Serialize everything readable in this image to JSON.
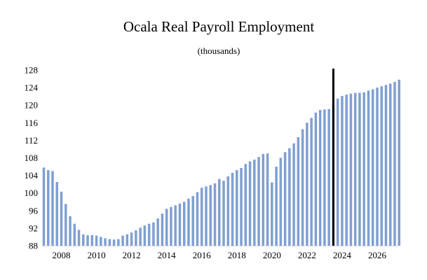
{
  "chart_data": {
    "type": "bar",
    "title": "Ocala Real Payroll Employment",
    "subtitle": "(thousands)",
    "xlabel": "",
    "ylabel": "",
    "x_start": 2007.0,
    "x_step": 0.25,
    "x_ticks": [
      "2008",
      "2010",
      "2012",
      "2014",
      "2016",
      "2018",
      "2020",
      "2022",
      "2024",
      "2026"
    ],
    "x_tick_values": [
      2008,
      2010,
      2012,
      2014,
      2016,
      2018,
      2020,
      2022,
      2024,
      2026
    ],
    "xlim": [
      2006.9,
      2027.2
    ],
    "ylim": [
      88,
      128
    ],
    "y_ticks": [
      88,
      92,
      96,
      100,
      104,
      108,
      112,
      116,
      120,
      124,
      128
    ],
    "grid": false,
    "marker_x": 2023.5,
    "bar_color": "#7f9fd2",
    "values": [
      105.8,
      105.2,
      105.0,
      102.5,
      100.3,
      97.5,
      94.7,
      93.0,
      91.6,
      90.6,
      90.4,
      90.4,
      90.3,
      90.0,
      89.7,
      89.5,
      89.4,
      89.5,
      90.3,
      90.6,
      91.0,
      91.5,
      92.1,
      92.6,
      93.0,
      93.3,
      94.2,
      95.3,
      96.4,
      96.8,
      97.2,
      97.6,
      98.0,
      98.7,
      99.3,
      100.2,
      101.2,
      101.5,
      101.8,
      102.2,
      103.2,
      102.8,
      103.8,
      104.6,
      105.2,
      105.7,
      106.6,
      107.2,
      107.6,
      108.2,
      108.9,
      109.0,
      102.4,
      106.0,
      108.0,
      109.3,
      110.2,
      111.3,
      112.7,
      114.5,
      116.0,
      117.1,
      118.3,
      118.9,
      119.0,
      119.1,
      120.1,
      121.5,
      122.1,
      122.4,
      122.6,
      122.8,
      122.8,
      122.9,
      123.3,
      123.6,
      124.0,
      124.3,
      124.6,
      124.9,
      125.3,
      125.8
    ]
  }
}
